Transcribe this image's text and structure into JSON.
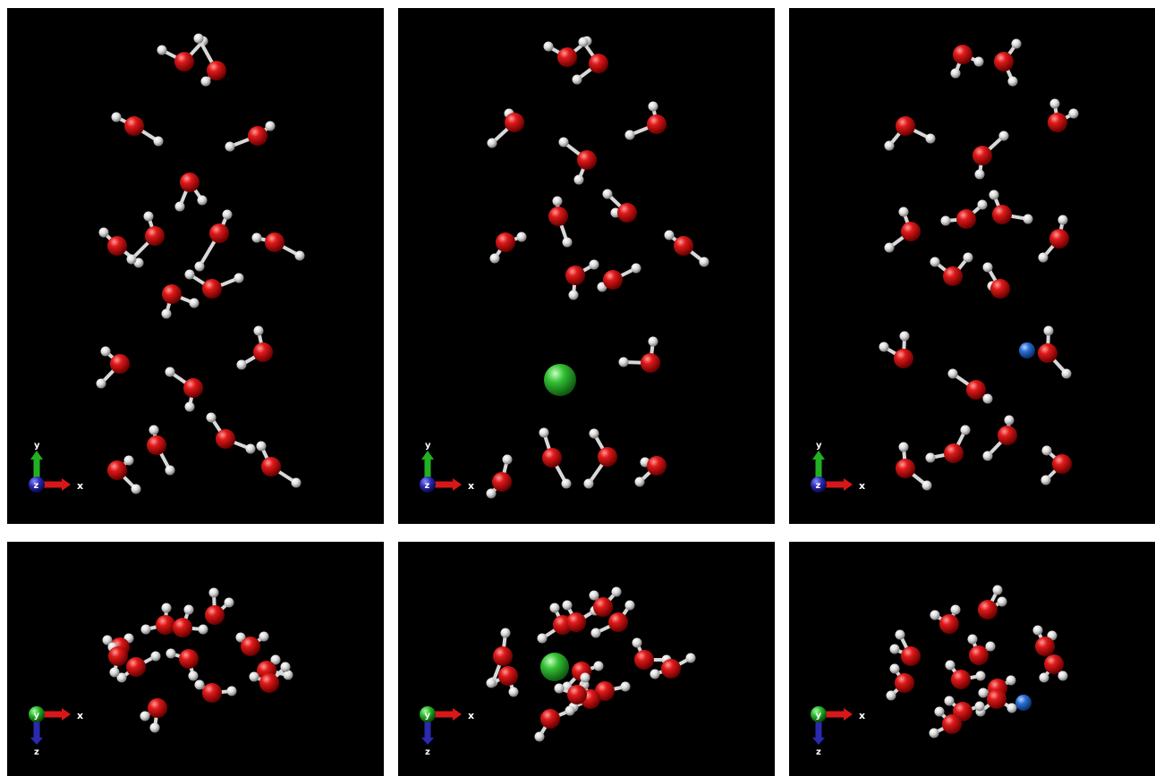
{
  "colors": {
    "background": "#000000",
    "oxygen": "#d81818",
    "hydrogen": "#eeeeee",
    "chloride_ion": "#2fbf2f",
    "sodium_ion": "#2a6fd8",
    "axis_x": "#d81818",
    "axis_y_top": "#22b022",
    "axis_z_top": "#2a2ab0",
    "axis_y_bottom": "#22b022",
    "axis_z_bottom": "#2a2ab0"
  },
  "axes_top": {
    "horizontal": "x",
    "vertical": "y",
    "origin": "z"
  },
  "axes_bottom": {
    "horizontal": "x",
    "vertical": "z",
    "origin": "y"
  },
  "panels": [
    {
      "id": "top-left",
      "view": "xy",
      "ion": "none"
    },
    {
      "id": "top-middle",
      "view": "xy",
      "ion": "chloride"
    },
    {
      "id": "top-right",
      "view": "xy",
      "ion": "sodium"
    },
    {
      "id": "bottom-left",
      "view": "xz",
      "ion": "none"
    },
    {
      "id": "bottom-middle",
      "view": "xz",
      "ion": "chloride"
    },
    {
      "id": "bottom-right",
      "view": "xz",
      "ion": "sodium"
    }
  ]
}
